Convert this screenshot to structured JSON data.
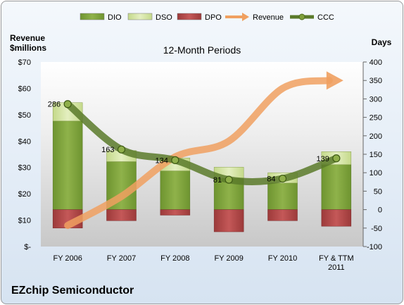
{
  "chart_data": {
    "type": "bar",
    "title": "12-Month Periods",
    "company": "EZchip Semiconductor",
    "categories": [
      "FY 2006",
      "FY 2007",
      "FY 2008",
      "FY 2009",
      "FY 2010",
      "FY & TTM 2011"
    ],
    "y_left": {
      "label_line1": "Revenue",
      "label_line2": "$millions",
      "ylim": [
        0,
        70
      ],
      "ticks": [
        0,
        10,
        20,
        30,
        40,
        50,
        60,
        70
      ],
      "tick_labels": [
        "$-",
        "$10",
        "$20",
        "$30",
        "$40",
        "$50",
        "$60",
        "$70"
      ]
    },
    "y_right": {
      "label": "Days",
      "ylim": [
        -100,
        400
      ],
      "ticks": [
        -100,
        -50,
        0,
        50,
        100,
        150,
        200,
        250,
        300,
        350,
        400
      ],
      "tick_labels": [
        "-100",
        "-50",
        "0",
        "50",
        "100",
        "150",
        "200",
        "250",
        "300",
        "350",
        "400"
      ]
    },
    "legend": {
      "placement": "top",
      "items": [
        {
          "name": "DIO",
          "kind": "bar",
          "color": "#7fa23a"
        },
        {
          "name": "DSO",
          "kind": "bar",
          "color": "#d6e6a6"
        },
        {
          "name": "DPO",
          "kind": "bar",
          "color": "#b44a4a"
        },
        {
          "name": "Revenue",
          "kind": "arrow",
          "color": "#f0a060"
        },
        {
          "name": "CCC",
          "kind": "line",
          "color": "#5a7a2a"
        }
      ]
    },
    "series": [
      {
        "name": "DIO",
        "axis": "right",
        "values": [
          240,
          130,
          105,
          85,
          72,
          122
        ]
      },
      {
        "name": "DSO",
        "axis": "right",
        "values": [
          50,
          30,
          35,
          30,
          28,
          35
        ]
      },
      {
        "name": "DPO",
        "axis": "right",
        "values": [
          -50,
          -30,
          -15,
          -60,
          -30,
          -45
        ]
      },
      {
        "name": "Revenue",
        "axis": "left",
        "values": [
          8,
          19,
          34,
          40,
          60,
          63
        ],
        "arrow": true
      },
      {
        "name": "CCC",
        "axis": "right",
        "values": [
          286,
          163,
          134,
          81,
          84,
          139
        ],
        "data_labels": [
          "286",
          "163",
          "134",
          "81",
          "84",
          "139"
        ]
      }
    ],
    "colors": {
      "DIO": "#7fa23a",
      "DSO": "#d6e6a6",
      "DPO": "#b44a4a",
      "Revenue": "#f0a060",
      "CCC": "#5a7a2a"
    },
    "grid": false
  }
}
